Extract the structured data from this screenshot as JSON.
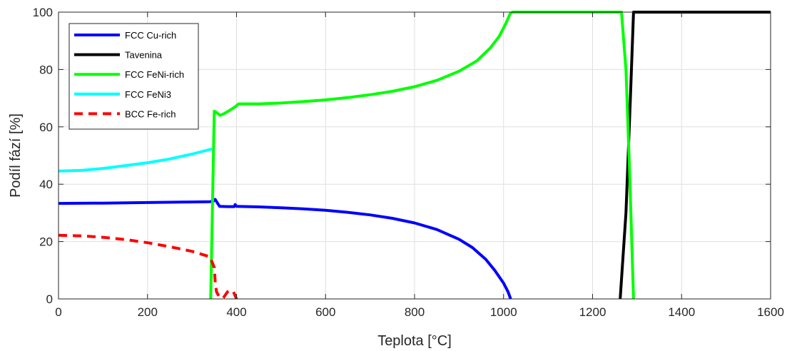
{
  "chart_data": {
    "type": "line",
    "xlabel": "Teplota [°C]",
    "ylabel": "Podíl fází [%]",
    "xlim": [
      0,
      1600
    ],
    "ylim": [
      0,
      100
    ],
    "xticks": [
      0,
      200,
      400,
      600,
      800,
      1000,
      1200,
      1400,
      1600
    ],
    "yticks": [
      0,
      20,
      40,
      60,
      80,
      100
    ],
    "grid": true,
    "legend_position": "top-left",
    "series": [
      {
        "name": "FCC Cu-rich",
        "color": "#0000ff",
        "style": "solid",
        "points": [
          [
            0,
            33.3
          ],
          [
            100,
            33.4
          ],
          [
            200,
            33.6
          ],
          [
            300,
            33.8
          ],
          [
            340,
            33.9
          ],
          [
            348,
            34.1
          ],
          [
            352,
            34.7
          ],
          [
            358,
            33.2
          ],
          [
            362,
            32.3
          ],
          [
            380,
            32.2
          ],
          [
            395,
            32.2
          ],
          [
            397,
            32.9
          ],
          [
            400,
            32.3
          ],
          [
            450,
            32.1
          ],
          [
            500,
            31.8
          ],
          [
            550,
            31.4
          ],
          [
            600,
            30.9
          ],
          [
            650,
            30.2
          ],
          [
            700,
            29.3
          ],
          [
            750,
            28.1
          ],
          [
            800,
            26.5
          ],
          [
            850,
            24.2
          ],
          [
            900,
            20.8
          ],
          [
            930,
            17.9
          ],
          [
            960,
            13.8
          ],
          [
            980,
            10.0
          ],
          [
            1000,
            5.5
          ],
          [
            1010,
            2.5
          ],
          [
            1016,
            0
          ]
        ]
      },
      {
        "name": "Tavenina",
        "color": "#000000",
        "style": "solid",
        "points": [
          [
            1262,
            0
          ],
          [
            1275,
            30
          ],
          [
            1285,
            70
          ],
          [
            1292,
            100
          ],
          [
            1600,
            100
          ]
        ]
      },
      {
        "name": "FCC FeNi-rich",
        "color": "#00ff00",
        "style": "solid",
        "points": [
          [
            342,
            0
          ],
          [
            350,
            65.5
          ],
          [
            355,
            65
          ],
          [
            363,
            64
          ],
          [
            372,
            64.6
          ],
          [
            385,
            65.8
          ],
          [
            397,
            67
          ],
          [
            405,
            68
          ],
          [
            450,
            68
          ],
          [
            500,
            68.3
          ],
          [
            550,
            68.8
          ],
          [
            600,
            69.4
          ],
          [
            650,
            70.2
          ],
          [
            700,
            71.2
          ],
          [
            750,
            72.4
          ],
          [
            800,
            74
          ],
          [
            850,
            76.2
          ],
          [
            900,
            79.4
          ],
          [
            940,
            83
          ],
          [
            970,
            87.5
          ],
          [
            990,
            91.5
          ],
          [
            1005,
            96
          ],
          [
            1015,
            99.5
          ],
          [
            1020,
            100
          ],
          [
            1265,
            100
          ],
          [
            1275,
            80
          ],
          [
            1283,
            45
          ],
          [
            1292,
            0
          ]
        ]
      },
      {
        "name": "FCC FeNi3",
        "color": "#00ffff",
        "style": "solid",
        "points": [
          [
            0,
            44.6
          ],
          [
            50,
            44.8
          ],
          [
            100,
            45.5
          ],
          [
            150,
            46.5
          ],
          [
            200,
            47.5
          ],
          [
            250,
            48.8
          ],
          [
            300,
            50.5
          ],
          [
            345,
            52.3
          ]
        ]
      },
      {
        "name": "BCC Fe-rich",
        "color": "#ff0000",
        "style": "dashed",
        "points": [
          [
            0,
            22.2
          ],
          [
            50,
            22
          ],
          [
            100,
            21.5
          ],
          [
            150,
            20.7
          ],
          [
            200,
            19.6
          ],
          [
            250,
            18.2
          ],
          [
            300,
            16.6
          ],
          [
            340,
            14.7
          ],
          [
            350,
            11
          ],
          [
            352,
            6
          ],
          [
            355,
            2.5
          ],
          [
            362,
            0.5
          ],
          [
            370,
            0.3
          ],
          [
            380,
            2.5
          ],
          [
            387,
            3
          ],
          [
            393,
            2.5
          ],
          [
            400,
            0
          ]
        ]
      }
    ]
  }
}
